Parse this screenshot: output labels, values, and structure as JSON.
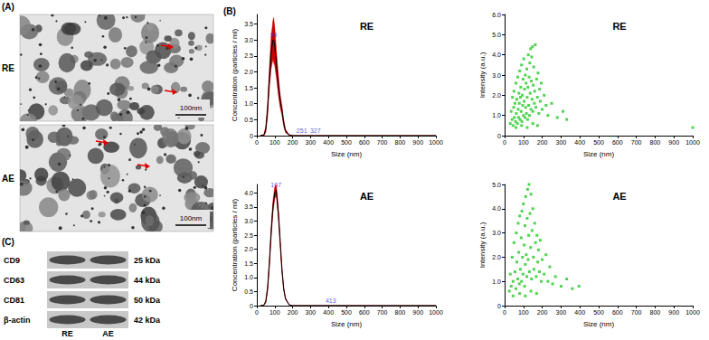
{
  "tem": {
    "letter": "(A)",
    "images": [
      {
        "label": "RE",
        "scale_bar": "100nm"
      },
      {
        "label": "AE",
        "scale_bar": "100nm"
      }
    ]
  },
  "panel_b": {
    "letter": "(B)"
  },
  "blot": {
    "letter": "(C)",
    "lanes": [
      "RE",
      "AE"
    ],
    "rows": [
      {
        "protein": "CD9",
        "size": "25 kDa"
      },
      {
        "protein": "CD63",
        "size": "44 kDa"
      },
      {
        "protein": "CD81",
        "size": "50 kDa"
      },
      {
        "protein": "β-actin",
        "size": "42 kDa"
      }
    ]
  },
  "chart_data": [
    {
      "type": "line",
      "title": "RE",
      "xlabel": "Size (nm)",
      "ylabel": "Concentration (particles / ml)",
      "x": [
        20,
        40,
        50,
        60,
        70,
        80,
        90,
        94,
        100,
        110,
        120,
        130,
        140,
        150,
        160,
        180,
        200,
        251,
        327,
        400,
        1000
      ],
      "values": [
        0,
        0.02,
        0.2,
        0.8,
        1.8,
        2.6,
        3.0,
        3.0,
        2.8,
        2.2,
        1.6,
        1.1,
        0.8,
        0.4,
        0.15,
        0.02,
        0,
        0,
        0,
        0,
        0
      ],
      "errors": [
        0,
        0.02,
        0.1,
        0.2,
        0.3,
        0.5,
        0.6,
        0.7,
        0.6,
        0.4,
        0.3,
        0.2,
        0.15,
        0.1,
        0.05,
        0.01,
        0,
        0,
        0,
        0,
        0
      ],
      "peaks": [
        94,
        251,
        327
      ],
      "color": "#000000",
      "error_color": "#cc0000",
      "marker": "none",
      "grid": false,
      "xlim": [
        0,
        1000
      ],
      "xticks": [
        0,
        100,
        200,
        300,
        400,
        500,
        600,
        700,
        800,
        900,
        1000
      ],
      "ylim": [
        0,
        3.8
      ],
      "yticks": [
        0,
        0.5,
        {
          "value": 1,
          "label": "1.0"
        },
        1.5,
        {
          "value": 2,
          "label": "2.0"
        },
        2.5,
        {
          "value": 3,
          "label": "3.0"
        },
        3.5
      ]
    },
    {
      "type": "scatter",
      "title": "RE",
      "xlabel": "Size (nm)",
      "ylabel": "Intensity (a.u.)",
      "x": [
        30,
        35,
        40,
        42,
        45,
        48,
        50,
        52,
        55,
        58,
        60,
        62,
        65,
        68,
        70,
        72,
        74,
        76,
        78,
        80,
        82,
        84,
        86,
        88,
        90,
        92,
        94,
        96,
        98,
        100,
        102,
        104,
        106,
        108,
        110,
        112,
        114,
        116,
        118,
        120,
        122,
        124,
        126,
        128,
        130,
        132,
        134,
        136,
        138,
        140,
        142,
        144,
        146,
        148,
        150,
        152,
        155,
        158,
        160,
        163,
        166,
        170,
        174,
        178,
        182,
        186,
        190,
        195,
        200,
        210,
        220,
        230,
        250,
        280,
        310,
        330,
        1000,
        60,
        90,
        120,
        150,
        175
      ],
      "values": [
        0.6,
        1.2,
        0.8,
        1.9,
        0.5,
        1.4,
        2.2,
        0.9,
        1.6,
        0.7,
        2.6,
        1.1,
        1.8,
        0.6,
        2.9,
        1.3,
        0.9,
        2.1,
        1.6,
        3.2,
        0.8,
        1.9,
        2.4,
        1.2,
        3.5,
        0.7,
        2.0,
        1.5,
        2.8,
        1.0,
        3.8,
        1.7,
        2.3,
        0.9,
        3.0,
        1.4,
        2.6,
        1.1,
        3.3,
        1.9,
        0.8,
        2.4,
        4.0,
        1.5,
        2.9,
        1.0,
        3.6,
        2.1,
        4.3,
        1.3,
        2.7,
        3.9,
        1.8,
        4.4,
        1.2,
        2.5,
        3.4,
        1.6,
        2.2,
        4.5,
        1.4,
        2.8,
        1.9,
        3.1,
        1.1,
        2.3,
        1.7,
        2.6,
        1.3,
        2.0,
        1.5,
        1.0,
        1.6,
        0.9,
        1.2,
        0.8,
        0.4,
        0.4,
        0.5,
        0.4,
        0.6,
        0.5
      ],
      "color": "#33cc33",
      "marker": "square",
      "grid": false,
      "xlim": [
        0,
        1000
      ],
      "xticks": [
        0,
        100,
        200,
        300,
        400,
        500,
        600,
        700,
        800,
        900,
        1000
      ],
      "ylim": [
        0,
        6
      ],
      "yticks": [
        0,
        {
          "value": 1,
          "label": "1.0"
        },
        {
          "value": 2,
          "label": "2.0"
        },
        {
          "value": 3,
          "label": "3.0"
        },
        {
          "value": 4,
          "label": "4.0"
        },
        {
          "value": 5,
          "label": "5.0"
        },
        {
          "value": 6,
          "label": "6.0"
        }
      ]
    },
    {
      "type": "line",
      "title": "AE",
      "xlabel": "Size (nm)",
      "ylabel": "Concentration (particles / ml)",
      "x": [
        20,
        40,
        50,
        60,
        70,
        80,
        90,
        100,
        107,
        110,
        120,
        130,
        140,
        150,
        160,
        180,
        200,
        413,
        1000
      ],
      "values": [
        0,
        0.02,
        0.15,
        0.6,
        1.5,
        2.6,
        3.5,
        4.0,
        4.1,
        4.0,
        3.3,
        2.3,
        1.3,
        0.6,
        0.25,
        0.03,
        0,
        0,
        0
      ],
      "errors": [
        0,
        0,
        0.05,
        0.1,
        0.15,
        0.2,
        0.2,
        0.2,
        0.2,
        0.2,
        0.2,
        0.15,
        0.1,
        0.05,
        0.03,
        0,
        0,
        0,
        0
      ],
      "peaks": [
        107,
        413
      ],
      "color": "#000000",
      "error_color": "#cc0000",
      "marker": "none",
      "grid": false,
      "xlim": [
        0,
        1000
      ],
      "xticks": [
        0,
        100,
        200,
        300,
        400,
        500,
        600,
        700,
        800,
        900,
        1000
      ],
      "ylim": [
        0,
        4.3
      ],
      "yticks": [
        0,
        0.5,
        {
          "value": 1,
          "label": "1.0"
        },
        1.5,
        {
          "value": 2,
          "label": "2.0"
        },
        2.5,
        {
          "value": 3,
          "label": "3.0"
        },
        3.5,
        {
          "value": 4,
          "label": "4.0"
        }
      ]
    },
    {
      "type": "scatter",
      "title": "AE",
      "xlabel": "Size (nm)",
      "ylabel": "Intensity (a.u.)",
      "x": [
        25,
        30,
        35,
        40,
        45,
        50,
        55,
        60,
        62,
        65,
        70,
        72,
        75,
        78,
        80,
        84,
        88,
        90,
        92,
        95,
        98,
        100,
        104,
        106,
        108,
        110,
        112,
        115,
        118,
        120,
        122,
        125,
        128,
        130,
        132,
        135,
        138,
        140,
        143,
        146,
        150,
        153,
        156,
        160,
        164,
        168,
        172,
        176,
        180,
        185,
        190,
        195,
        200,
        210,
        220,
        230,
        240,
        255,
        270,
        300,
        330,
        360,
        395,
        45,
        80,
        110,
        140,
        170
      ],
      "values": [
        0.6,
        1.3,
        0.8,
        2.0,
        1.0,
        2.6,
        1.4,
        0.7,
        3.0,
        1.8,
        1.1,
        3.4,
        2.2,
        0.9,
        3.7,
        1.5,
        2.8,
        1.0,
        3.9,
        2.0,
        1.3,
        4.2,
        2.5,
        0.8,
        3.3,
        1.7,
        4.5,
        2.1,
        1.2,
        3.6,
        4.8,
        1.9,
        2.9,
        5.0,
        1.4,
        3.8,
        2.4,
        4.6,
        1.1,
        3.1,
        4.0,
        2.0,
        1.5,
        3.4,
        2.6,
        1.2,
        2.9,
        1.8,
        2.3,
        1.4,
        2.7,
        1.0,
        1.9,
        1.3,
        2.1,
        1.0,
        1.6,
        0.9,
        1.2,
        0.8,
        1.1,
        0.7,
        0.8,
        0.4,
        0.5,
        0.4,
        0.6,
        0.5
      ],
      "color": "#33cc33",
      "marker": "square",
      "grid": false,
      "xlim": [
        0,
        1000
      ],
      "xticks": [
        0,
        100,
        200,
        300,
        400,
        500,
        600,
        700,
        800,
        900,
        1000
      ],
      "ylim": [
        0,
        5
      ],
      "yticks": [
        0,
        {
          "value": 1,
          "label": "1.0"
        },
        {
          "value": 2,
          "label": "2.0"
        },
        {
          "value": 3,
          "label": "3.0"
        },
        {
          "value": 4,
          "label": "4.0"
        },
        {
          "value": 5,
          "label": "5.0"
        }
      ]
    }
  ]
}
